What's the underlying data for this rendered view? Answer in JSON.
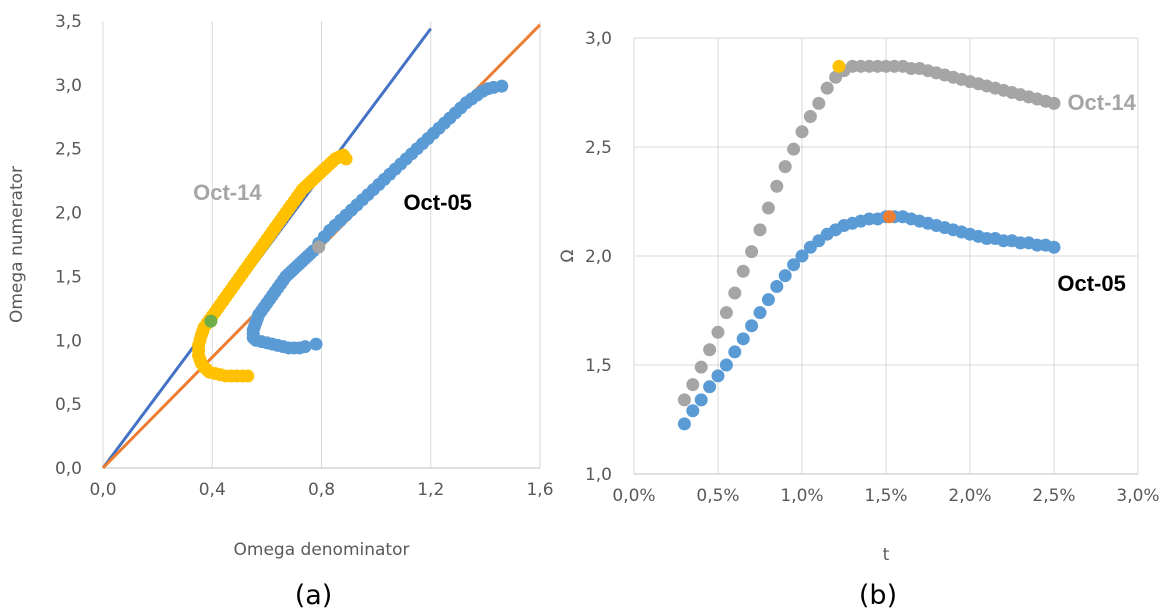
{
  "colors": {
    "oct05": "#5b9bd5",
    "oct14_a": "#ffc000",
    "oct14_b": "#a5a5a5",
    "line_blue": "#4472c4",
    "line_orange": "#ed7d31",
    "highlight_a05": "#a5a5a5",
    "highlight_a14": "#70ad47",
    "highlight_b14": "#ffc000",
    "highlight_b05": "#ed7d31",
    "grid": "#d9d9d9",
    "label_oct14": "#a5a5a5",
    "label_oct05": "#000000"
  },
  "chart_data": [
    {
      "type": "scatter",
      "panel_label": "(a)",
      "xlabel": "Omega denominator",
      "ylabel": "Omega numerator",
      "xlim": [
        0,
        1.6
      ],
      "ylim": [
        0,
        3.5
      ],
      "x_ticks": [
        0,
        0.4,
        0.8,
        1.2,
        1.6
      ],
      "y_ticks": [
        0,
        0.5,
        1.0,
        1.5,
        2.0,
        2.5,
        3.0,
        3.5
      ],
      "x_tick_labels": [
        "0,0",
        "0,4",
        "0,8",
        "1,2",
        "1,6"
      ],
      "y_tick_labels": [
        "0,0",
        "0,5",
        "1,0",
        "1,5",
        "2,0",
        "2,5",
        "3,0",
        "3,5"
      ],
      "grid": "vertical",
      "lines": [
        {
          "x": [
            0,
            1.2
          ],
          "y": [
            0,
            3.44
          ],
          "color": "line_blue"
        },
        {
          "x": [
            0,
            1.6
          ],
          "y": [
            0,
            3.47
          ],
          "color": "line_orange"
        }
      ],
      "series": [
        {
          "name": "Oct-05",
          "color": "oct05",
          "x": [
            0.78,
            0.74,
            0.72,
            0.7,
            0.68,
            0.66,
            0.64,
            0.62,
            0.6,
            0.58,
            0.56,
            0.55,
            0.55,
            0.55,
            0.555,
            0.56,
            0.565,
            0.57,
            0.58,
            0.59,
            0.6,
            0.61,
            0.62,
            0.63,
            0.64,
            0.65,
            0.66,
            0.67,
            0.68,
            0.69,
            0.7,
            0.71,
            0.72,
            0.73,
            0.74,
            0.75,
            0.76,
            0.77,
            0.79,
            0.81,
            0.83,
            0.85,
            0.87,
            0.89,
            0.91,
            0.93,
            0.95,
            0.97,
            0.99,
            1.01,
            1.03,
            1.05,
            1.07,
            1.09,
            1.11,
            1.13,
            1.15,
            1.17,
            1.19,
            1.21,
            1.23,
            1.25,
            1.27,
            1.29,
            1.31,
            1.33,
            1.35,
            1.37,
            1.39,
            1.41,
            1.43,
            1.46
          ],
          "y": [
            0.97,
            0.95,
            0.94,
            0.94,
            0.94,
            0.95,
            0.96,
            0.97,
            0.98,
            0.99,
            1.0,
            1.02,
            1.05,
            1.08,
            1.11,
            1.14,
            1.17,
            1.2,
            1.23,
            1.26,
            1.29,
            1.32,
            1.35,
            1.38,
            1.41,
            1.44,
            1.47,
            1.5,
            1.52,
            1.54,
            1.56,
            1.58,
            1.6,
            1.62,
            1.64,
            1.66,
            1.68,
            1.7,
            1.76,
            1.81,
            1.86,
            1.9,
            1.94,
            1.98,
            2.02,
            2.06,
            2.1,
            2.14,
            2.18,
            2.22,
            2.26,
            2.3,
            2.34,
            2.38,
            2.42,
            2.46,
            2.5,
            2.54,
            2.58,
            2.62,
            2.66,
            2.7,
            2.74,
            2.78,
            2.82,
            2.86,
            2.89,
            2.92,
            2.95,
            2.97,
            2.98,
            2.99
          ]
        },
        {
          "name": "Oct-14",
          "color": "oct14_a",
          "x": [
            0.53,
            0.51,
            0.49,
            0.47,
            0.45,
            0.43,
            0.41,
            0.39,
            0.38,
            0.37,
            0.36,
            0.355,
            0.35,
            0.35,
            0.35,
            0.355,
            0.36,
            0.365,
            0.37,
            0.38,
            0.39,
            0.4,
            0.41,
            0.42,
            0.43,
            0.44,
            0.45,
            0.46,
            0.47,
            0.48,
            0.49,
            0.5,
            0.51,
            0.52,
            0.53,
            0.54,
            0.55,
            0.56,
            0.57,
            0.58,
            0.59,
            0.6,
            0.61,
            0.62,
            0.63,
            0.64,
            0.65,
            0.66,
            0.67,
            0.68,
            0.69,
            0.7,
            0.71,
            0.72,
            0.73,
            0.74,
            0.75,
            0.76,
            0.77,
            0.78,
            0.79,
            0.8,
            0.81,
            0.82,
            0.83,
            0.84,
            0.85,
            0.86,
            0.87,
            0.88,
            0.89
          ],
          "y": [
            0.72,
            0.72,
            0.72,
            0.72,
            0.72,
            0.73,
            0.74,
            0.75,
            0.77,
            0.79,
            0.82,
            0.85,
            0.88,
            0.92,
            0.96,
            1.0,
            1.04,
            1.07,
            1.1,
            1.13,
            1.16,
            1.19,
            1.22,
            1.25,
            1.28,
            1.31,
            1.34,
            1.37,
            1.4,
            1.43,
            1.46,
            1.49,
            1.52,
            1.55,
            1.58,
            1.61,
            1.64,
            1.67,
            1.7,
            1.73,
            1.76,
            1.79,
            1.82,
            1.85,
            1.88,
            1.91,
            1.94,
            1.97,
            2.0,
            2.03,
            2.06,
            2.09,
            2.12,
            2.15,
            2.18,
            2.2,
            2.22,
            2.24,
            2.26,
            2.28,
            2.3,
            2.32,
            2.34,
            2.36,
            2.38,
            2.4,
            2.42,
            2.43,
            2.44,
            2.45,
            2.42
          ]
        }
      ],
      "highlights": [
        {
          "x": 0.79,
          "y": 1.73,
          "color": "highlight_a05"
        },
        {
          "x": 0.395,
          "y": 1.15,
          "color": "highlight_a14"
        }
      ],
      "annotations": [
        {
          "text": "Oct-14",
          "x": 0.33,
          "y": 2.1,
          "color": "label_oct14"
        },
        {
          "text": "Oct-05",
          "x": 1.1,
          "y": 2.02,
          "color": "label_oct05"
        }
      ]
    },
    {
      "type": "scatter",
      "panel_label": "(b)",
      "xlabel": "t",
      "ylabel": "Ω",
      "xlim": [
        0,
        0.03
      ],
      "ylim": [
        1.0,
        3.0
      ],
      "x_ticks": [
        0,
        0.005,
        0.01,
        0.015,
        0.02,
        0.025,
        0.03
      ],
      "y_ticks": [
        1.0,
        1.5,
        2.0,
        2.5,
        3.0
      ],
      "x_tick_labels": [
        "0,0%",
        "0,5%",
        "1,0%",
        "1,5%",
        "2,0%",
        "2,5%",
        "3,0%"
      ],
      "y_tick_labels": [
        "1,0",
        "1,5",
        "2,0",
        "2,5",
        "3,0"
      ],
      "grid": "both",
      "series": [
        {
          "name": "Oct-14",
          "color": "oct14_b",
          "x": [
            0.003,
            0.0035,
            0.004,
            0.0045,
            0.005,
            0.0055,
            0.006,
            0.0065,
            0.007,
            0.0075,
            0.008,
            0.0085,
            0.009,
            0.0095,
            0.01,
            0.0105,
            0.011,
            0.0115,
            0.012,
            0.0125,
            0.013,
            0.0135,
            0.014,
            0.0145,
            0.015,
            0.0155,
            0.016,
            0.0165,
            0.017,
            0.0175,
            0.018,
            0.0185,
            0.019,
            0.0195,
            0.02,
            0.0205,
            0.021,
            0.0215,
            0.022,
            0.0225,
            0.023,
            0.0235,
            0.024,
            0.0245,
            0.025
          ],
          "y": [
            1.34,
            1.41,
            1.49,
            1.57,
            1.65,
            1.74,
            1.83,
            1.93,
            2.02,
            2.12,
            2.22,
            2.32,
            2.41,
            2.49,
            2.57,
            2.64,
            2.7,
            2.77,
            2.82,
            2.85,
            2.87,
            2.87,
            2.87,
            2.87,
            2.87,
            2.87,
            2.87,
            2.86,
            2.86,
            2.85,
            2.84,
            2.83,
            2.82,
            2.81,
            2.8,
            2.79,
            2.78,
            2.77,
            2.76,
            2.75,
            2.74,
            2.73,
            2.72,
            2.71,
            2.7
          ]
        },
        {
          "name": "Oct-05",
          "color": "oct05",
          "x": [
            0.003,
            0.0035,
            0.004,
            0.0045,
            0.005,
            0.0055,
            0.006,
            0.0065,
            0.007,
            0.0075,
            0.008,
            0.0085,
            0.009,
            0.0095,
            0.01,
            0.0105,
            0.011,
            0.0115,
            0.012,
            0.0125,
            0.013,
            0.0135,
            0.014,
            0.0145,
            0.015,
            0.0155,
            0.016,
            0.0165,
            0.017,
            0.0175,
            0.018,
            0.0185,
            0.019,
            0.0195,
            0.02,
            0.0205,
            0.021,
            0.0215,
            0.022,
            0.0225,
            0.023,
            0.0235,
            0.024,
            0.0245,
            0.025
          ],
          "y": [
            1.23,
            1.29,
            1.34,
            1.4,
            1.45,
            1.5,
            1.56,
            1.62,
            1.68,
            1.74,
            1.8,
            1.86,
            1.91,
            1.96,
            2.0,
            2.04,
            2.07,
            2.1,
            2.12,
            2.14,
            2.15,
            2.16,
            2.17,
            2.17,
            2.18,
            2.18,
            2.18,
            2.17,
            2.16,
            2.15,
            2.14,
            2.13,
            2.12,
            2.11,
            2.1,
            2.09,
            2.08,
            2.08,
            2.07,
            2.07,
            2.06,
            2.06,
            2.05,
            2.05,
            2.04
          ]
        }
      ],
      "highlights": [
        {
          "x": 0.0122,
          "y": 2.87,
          "color": "highlight_b14"
        },
        {
          "x": 0.0152,
          "y": 2.18,
          "color": "highlight_b05"
        }
      ],
      "annotations": [
        {
          "text": "Oct-14",
          "x": 0.0258,
          "y": 2.67,
          "color": "label_oct14"
        },
        {
          "text": "Oct-05",
          "x": 0.0252,
          "y": 1.84,
          "color": "label_oct05"
        }
      ]
    }
  ]
}
